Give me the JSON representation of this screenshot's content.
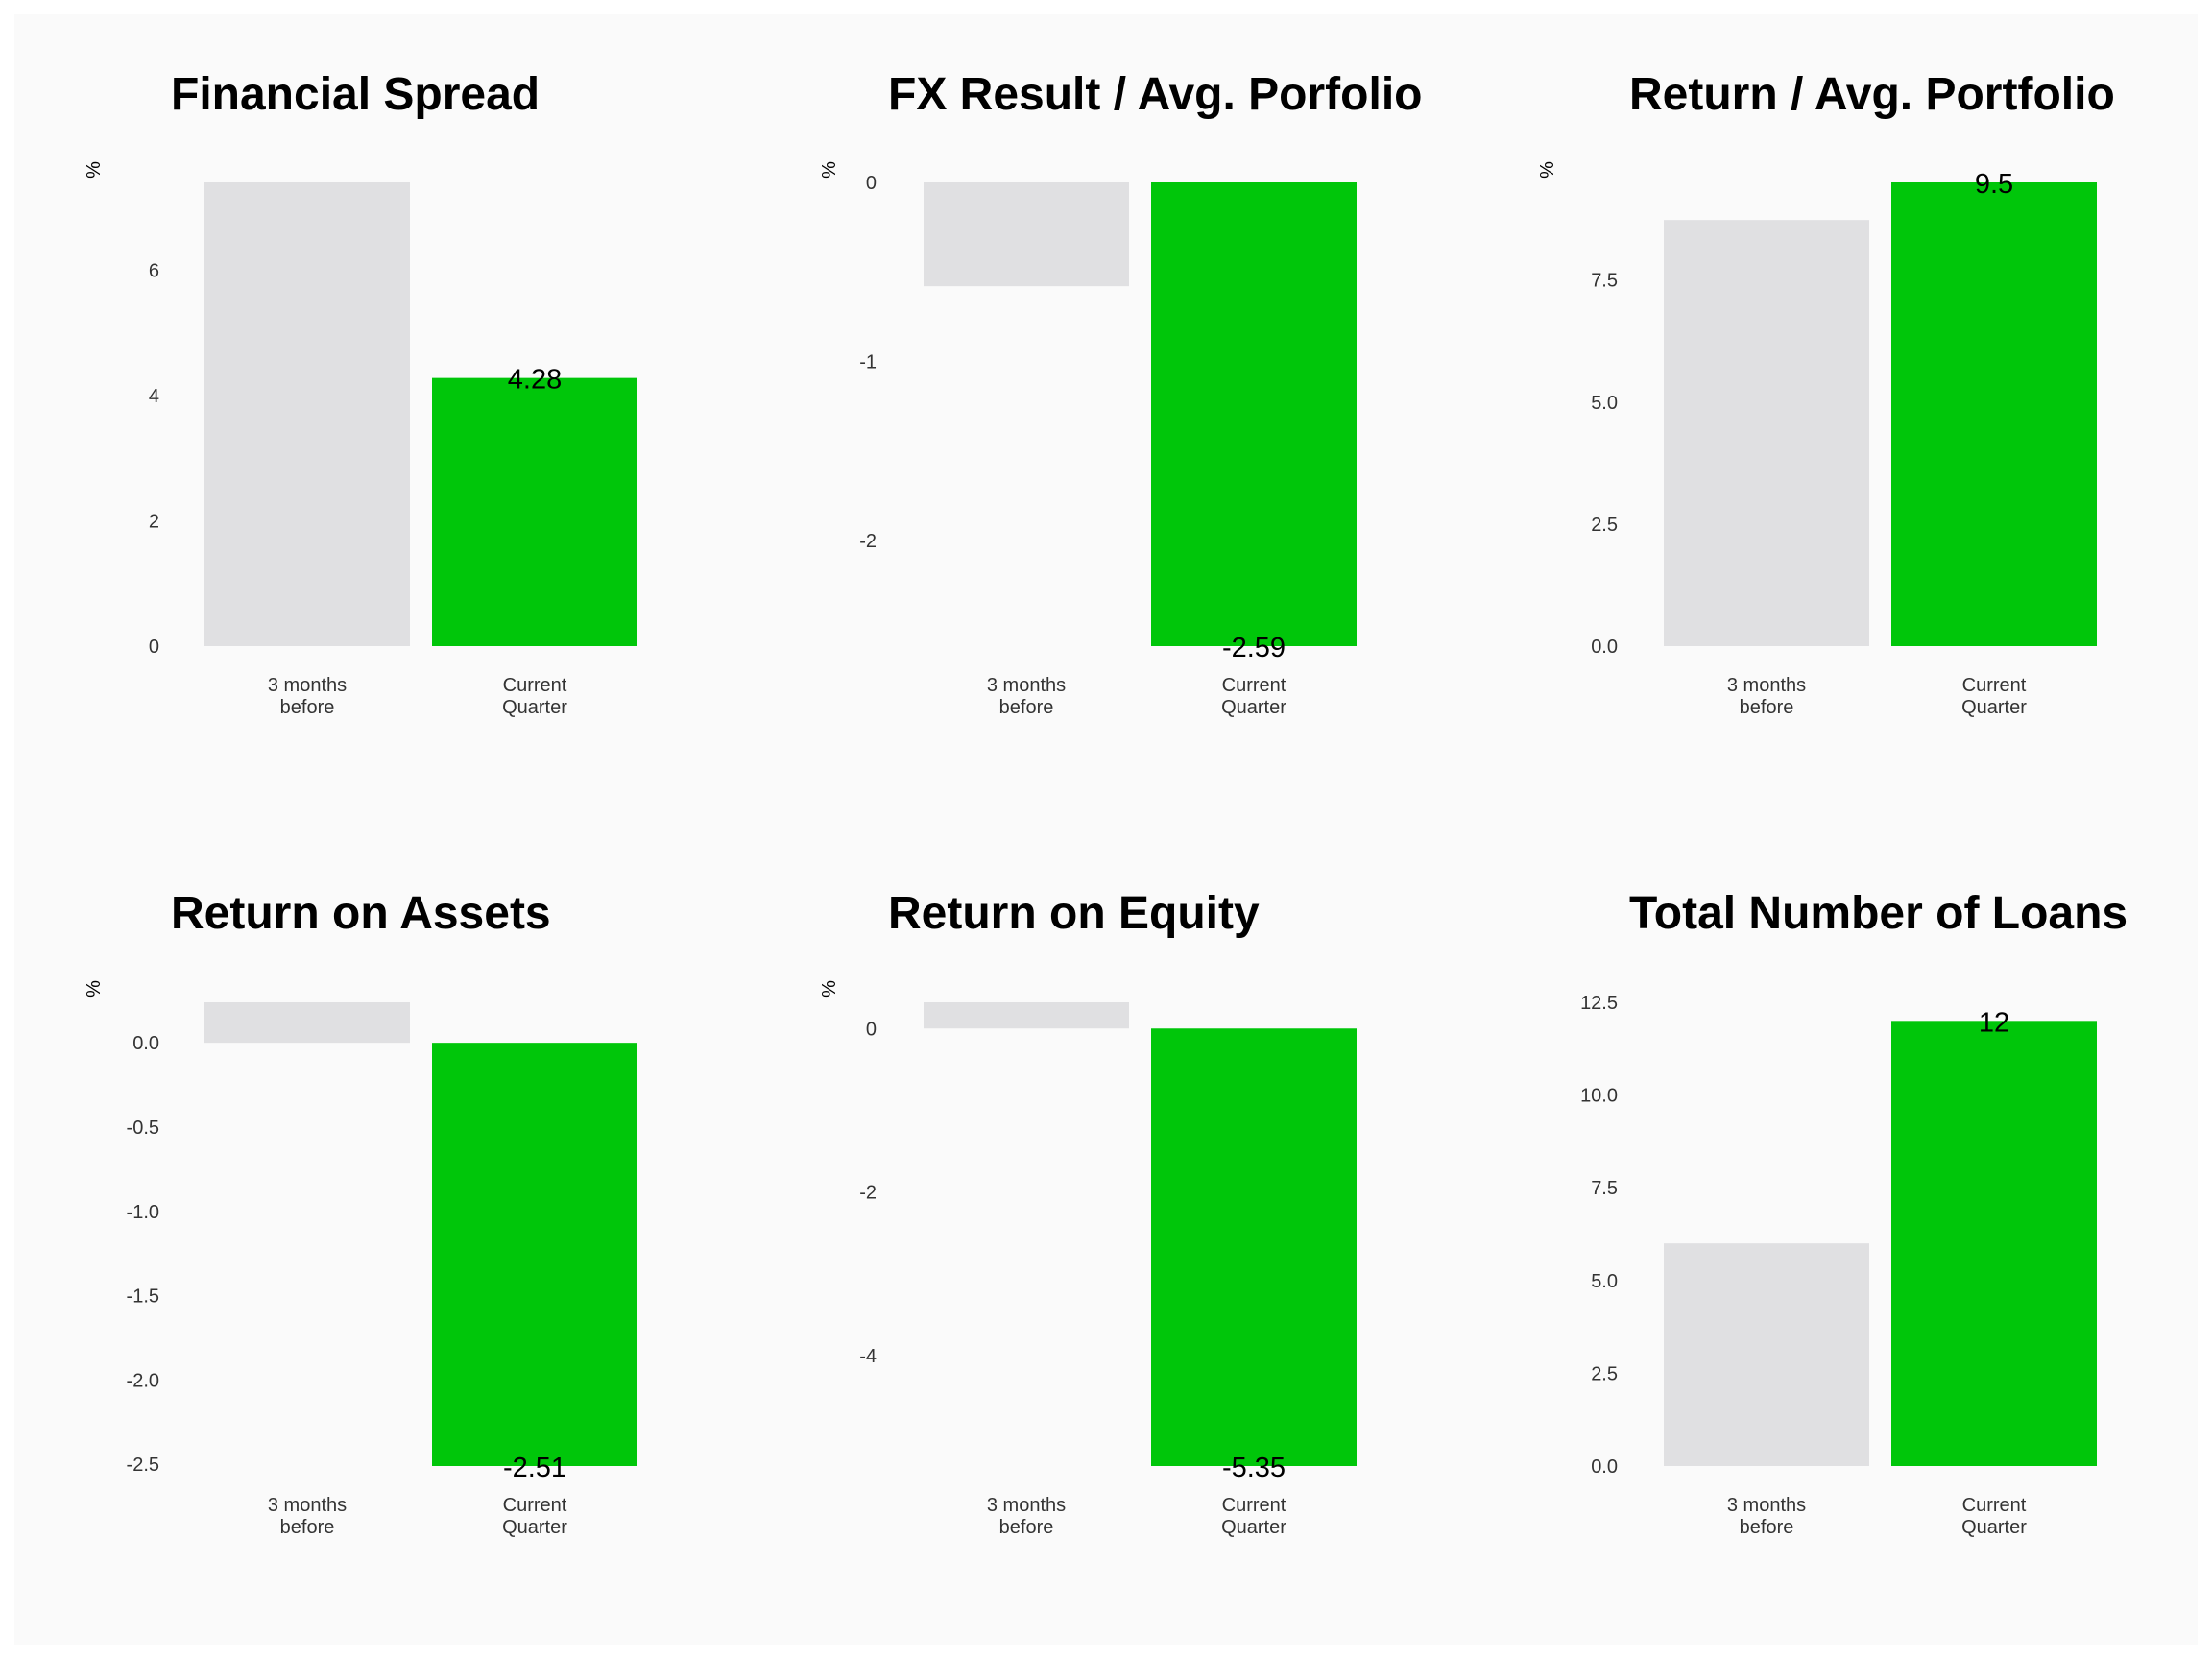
{
  "colors": {
    "previous": "#e0e0e2",
    "current": "#00c60a",
    "panel_background": "#fafafa"
  },
  "chart_data": [
    {
      "type": "bar",
      "title": "Financial Spread",
      "ylabel": "%",
      "categories": [
        "3 months before",
        "Current Quarter"
      ],
      "category_lines": [
        [
          "3 months",
          "before"
        ],
        [
          "Current",
          "Quarter"
        ]
      ],
      "values": [
        7.4,
        4.28
      ],
      "data_labels": [
        "",
        "4.28"
      ],
      "yticks": [
        0,
        2,
        4,
        6
      ],
      "ytick_labels": [
        "0",
        "2",
        "4",
        "6"
      ],
      "ylim": [
        0,
        7.4
      ],
      "grid": false,
      "legend": "none"
    },
    {
      "type": "bar",
      "title": "FX Result / Avg. Porfolio",
      "ylabel": "%",
      "categories": [
        "3 months before",
        "Current Quarter"
      ],
      "category_lines": [
        [
          "3 months",
          "before"
        ],
        [
          "Current",
          "Quarter"
        ]
      ],
      "values": [
        -0.58,
        -2.59
      ],
      "data_labels": [
        "",
        "-2.59"
      ],
      "yticks": [
        0,
        -1,
        -2
      ],
      "ytick_labels": [
        "0",
        "-1",
        "-2"
      ],
      "ylim": [
        -2.59,
        0
      ],
      "grid": false,
      "legend": "none"
    },
    {
      "type": "bar",
      "title": "Return / Avg. Portfolio",
      "ylabel": "%",
      "categories": [
        "3 months before",
        "Current Quarter"
      ],
      "category_lines": [
        [
          "3 months",
          "before"
        ],
        [
          "Current",
          "Quarter"
        ]
      ],
      "values": [
        8.73,
        9.5
      ],
      "data_labels": [
        "",
        "9.5"
      ],
      "yticks": [
        0,
        2.5,
        5,
        7.5
      ],
      "ytick_labels": [
        "0.0",
        "2.5",
        "5.0",
        "7.5"
      ],
      "ylim": [
        0,
        9.5
      ],
      "grid": false,
      "legend": "none"
    },
    {
      "type": "bar",
      "title": "Return on Assets",
      "ylabel": "%",
      "categories": [
        "3 months before",
        "Current Quarter"
      ],
      "category_lines": [
        [
          "3 months",
          "before"
        ],
        [
          "Current",
          "Quarter"
        ]
      ],
      "values": [
        0.24,
        -2.51
      ],
      "data_labels": [
        "",
        "-2.51"
      ],
      "yticks": [
        0,
        -0.5,
        -1,
        -1.5,
        -2,
        -2.5
      ],
      "ytick_labels": [
        "0.0",
        "-0.5",
        "-1.0",
        "-1.5",
        "-2.0",
        "-2.5"
      ],
      "ylim": [
        -2.51,
        0.24
      ],
      "grid": false,
      "legend": "none"
    },
    {
      "type": "bar",
      "title": "Return on Equity",
      "ylabel": "%",
      "categories": [
        "3 months before",
        "Current Quarter"
      ],
      "category_lines": [
        [
          "3 months",
          "before"
        ],
        [
          "Current",
          "Quarter"
        ]
      ],
      "values": [
        0.32,
        -5.35
      ],
      "data_labels": [
        "",
        "-5.35"
      ],
      "yticks": [
        0,
        -2,
        -4
      ],
      "ytick_labels": [
        "0",
        "-2",
        "-4"
      ],
      "ylim": [
        -5.35,
        0.32
      ],
      "grid": false,
      "legend": "none"
    },
    {
      "type": "bar",
      "title": "Total Number of Loans",
      "ylabel": "",
      "categories": [
        "3 months before",
        "Current Quarter"
      ],
      "category_lines": [
        [
          "3 months",
          "before"
        ],
        [
          "Current",
          "Quarter"
        ]
      ],
      "values": [
        6,
        12
      ],
      "data_labels": [
        "",
        "12"
      ],
      "yticks": [
        0,
        2.5,
        5,
        7.5,
        10,
        12.5
      ],
      "ytick_labels": [
        "0.0",
        "2.5",
        "5.0",
        "7.5",
        "10.0",
        "12.5"
      ],
      "ylim": [
        0,
        12.5
      ],
      "grid": false,
      "legend": "none"
    }
  ]
}
